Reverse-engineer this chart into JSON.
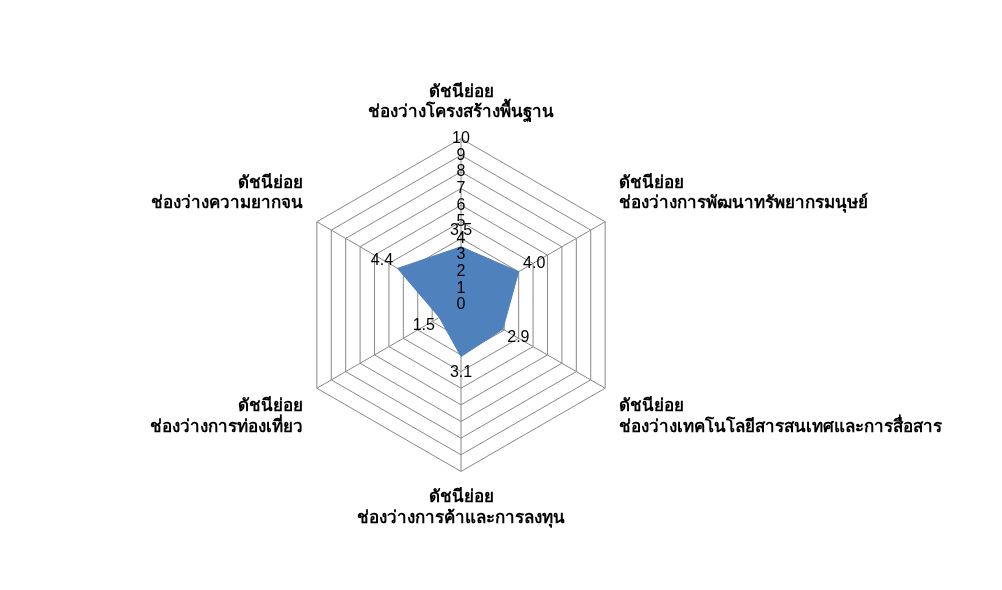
{
  "chart_data": {
    "type": "radar",
    "categories": [
      "ดัชนีย่อย ช่องว่างโครงสร้างพื้นฐาน",
      "ดัชนีย่อย ช่องว่างการพัฒนาทรัพยากรมนุษย์",
      "ดัชนีย่อย ช่องว่างเทคโนโลยีสารสนเทศและการสื่อสาร",
      "ดัชนีย่อย ช่องว่างการค้าและการลงทุน",
      "ดัชนีย่อย ช่องว่างการท่องเที่ยว",
      "ดัชนีย่อย ช่องว่างความยากจน"
    ],
    "series": [
      {
        "color": "#4f81bd",
        "values": [
          3.5,
          4.0,
          2.9,
          3.1,
          1.5,
          4.4
        ],
        "value_labels": [
          "3.5",
          "4.0",
          "2.9",
          "3.1",
          "1.5",
          "4.4"
        ]
      }
    ],
    "ylim": [
      0,
      10
    ],
    "yticks": [
      0,
      1,
      2,
      3,
      4,
      5,
      6,
      7,
      8,
      9,
      10
    ],
    "grid": true,
    "legend": false,
    "data_labels": true
  }
}
